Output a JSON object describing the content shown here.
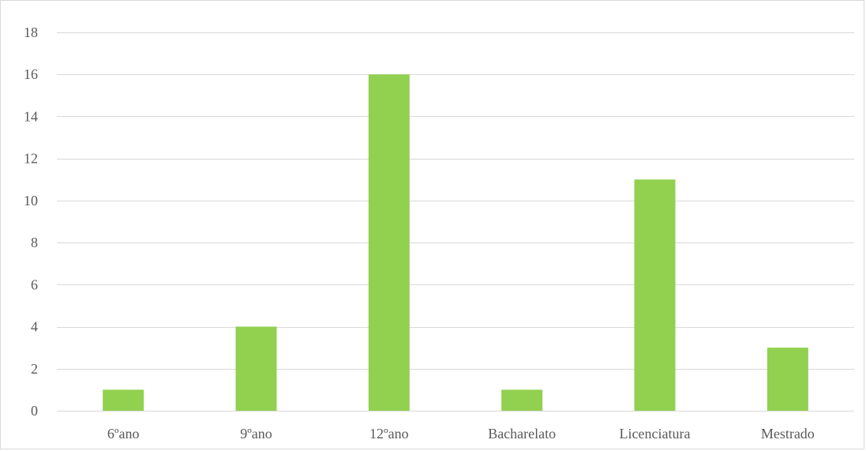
{
  "chart_data": {
    "type": "bar",
    "title": "",
    "xlabel": "",
    "ylabel": "",
    "categories": [
      "6ºano",
      "9ºano",
      "12ºano",
      "Bacharelato",
      "Licenciatura",
      "Mestrado"
    ],
    "values": [
      1,
      4,
      16,
      1,
      11,
      3
    ],
    "ylim": [
      0,
      18
    ],
    "yticks": [
      0,
      2,
      4,
      6,
      8,
      10,
      12,
      14,
      16,
      18
    ],
    "grid": true,
    "legend": "none",
    "colors": {
      "bar": "#92d050",
      "grid": "#d9d9d9",
      "text": "#595959"
    }
  }
}
